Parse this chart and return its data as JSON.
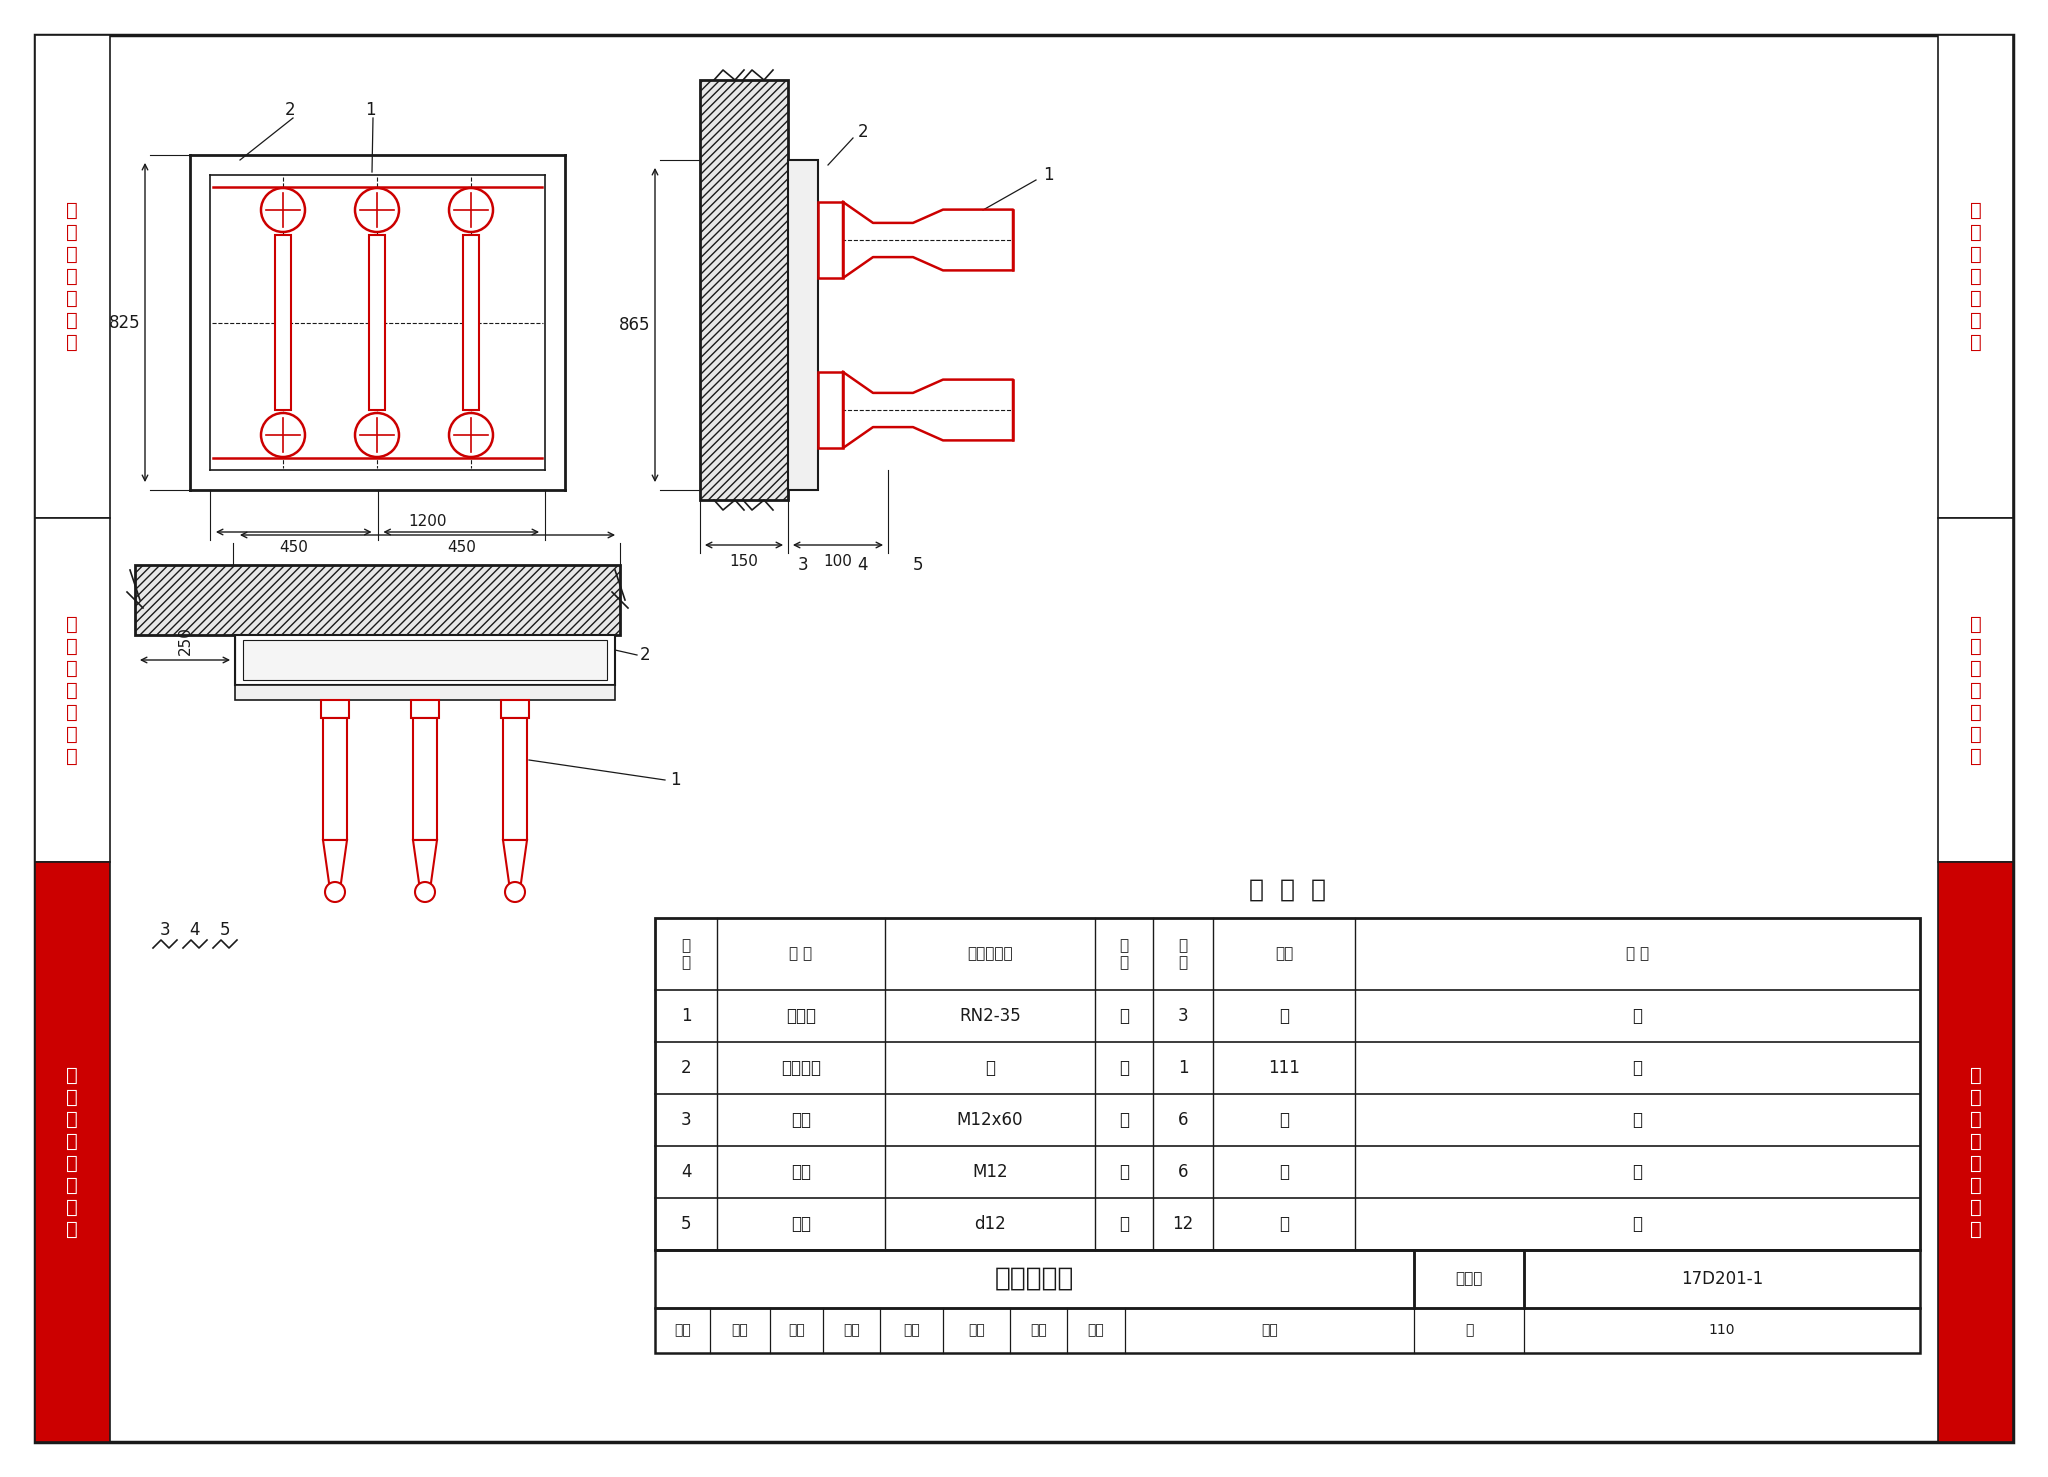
{
  "bg_color": "#ffffff",
  "red": "#cc0000",
  "black": "#1a1a1a",
  "sidebar_texts_left": [
    "变\n压\n器\n室\n布\n置\n图",
    "土\n建\n设\n计\n任\n务\n图",
    "常\n用\n设\n备\n构\n件\n安\n装"
  ],
  "sidebar_texts_right": [
    "变\n压\n器\n室\n布\n置\n图",
    "土\n建\n设\n计\n任\n务\n图",
    "常\n用\n设\n备\n构\n件\n安\n装"
  ],
  "sidebar_bgs": [
    "#ffffff",
    "#ffffff",
    "#cc0000"
  ],
  "sidebar_fgs_left": [
    "#cc0000",
    "#cc0000",
    "#ffffff"
  ],
  "sidebar_fgs_right": [
    "#cc0000",
    "#cc0000",
    "#ffffff"
  ],
  "table_title": "明  细  表",
  "table_headers": [
    "编\n号",
    "名 称",
    "型号及规格",
    "单\n位",
    "数\n量",
    "页次",
    "备 注"
  ],
  "table_data": [
    [
      "1",
      "熔断器",
      "RN2-35",
      "个",
      "3",
      "－",
      "－"
    ],
    [
      "2",
      "安装支架",
      "－",
      "个",
      "1",
      "111",
      "－"
    ],
    [
      "3",
      "螺栓",
      "M12x60",
      "个",
      "6",
      "－",
      "－"
    ],
    [
      "4",
      "螺母",
      "M12",
      "个",
      "6",
      "－",
      "－"
    ],
    [
      "5",
      "垫圈",
      "d12",
      "个",
      "12",
      "－",
      "－"
    ]
  ],
  "bottom_title": "熔断器安装",
  "atlas_label": "图集号",
  "atlas_no": "17D201-1",
  "page_label": "页",
  "page_no": "110",
  "dim_825": "825",
  "dim_450a": "450",
  "dim_450b": "450",
  "dim_865": "865",
  "dim_150": "150",
  "dim_100": "100",
  "dim_1200": "1200",
  "dim_250": "250"
}
